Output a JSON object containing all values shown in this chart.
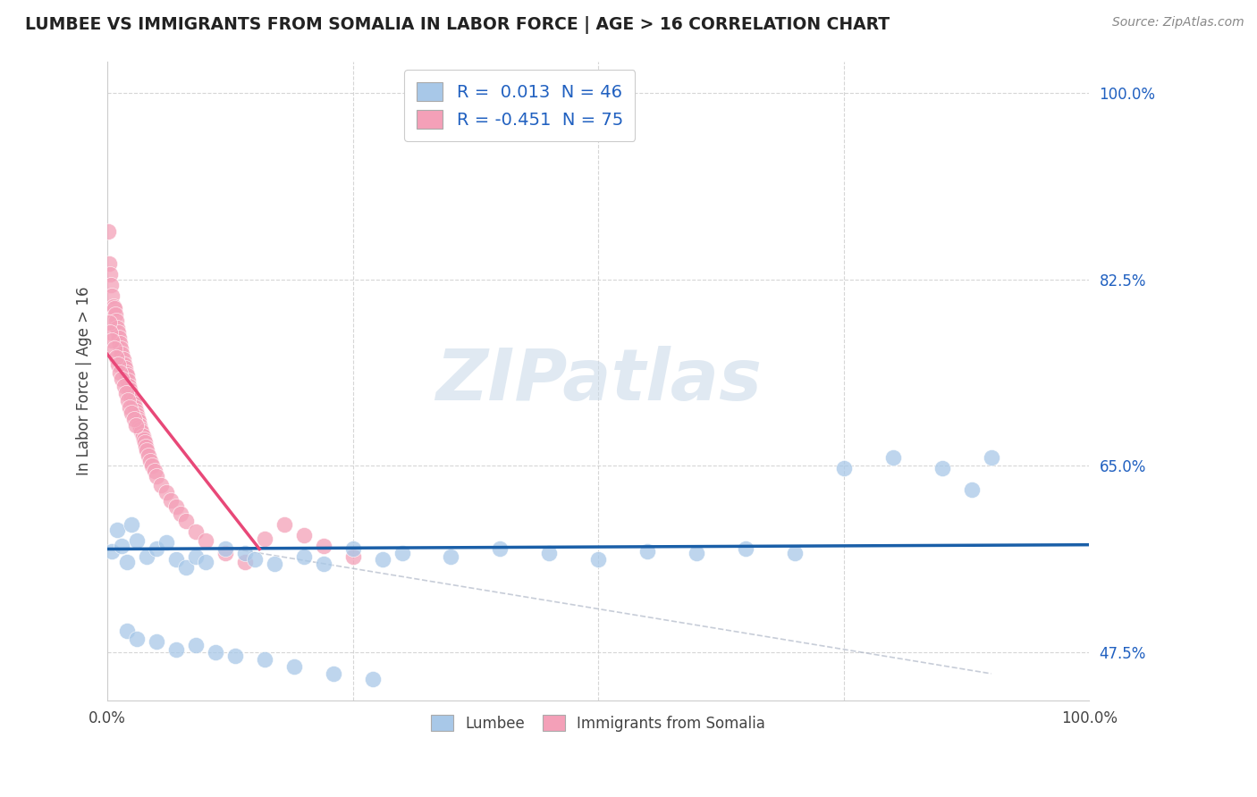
{
  "title": "LUMBEE VS IMMIGRANTS FROM SOMALIA IN LABOR FORCE | AGE > 16 CORRELATION CHART",
  "source": "Source: ZipAtlas.com",
  "ylabel": "In Labor Force | Age > 16",
  "xlim": [
    0.0,
    1.0
  ],
  "ylim": [
    0.43,
    1.03
  ],
  "ytick_vals": [
    0.475,
    0.65,
    0.825,
    1.0
  ],
  "ytick_labels": [
    "47.5%",
    "65.0%",
    "82.5%",
    "100.0%"
  ],
  "xtick_vals": [
    0.0,
    1.0
  ],
  "xtick_labels": [
    "0.0%",
    "100.0%"
  ],
  "legend_blue_label": "R =  0.013  N = 46",
  "legend_pink_label": "R = -0.451  N = 75",
  "blue_color": "#a8c8e8",
  "pink_color": "#f4a0b8",
  "blue_line_color": "#1a5fa8",
  "pink_line_color": "#e84878",
  "grid_color": "#cccccc",
  "watermark_color": "#c8d8e8",
  "lumbee_x": [
    0.005,
    0.01,
    0.015,
    0.02,
    0.025,
    0.03,
    0.04,
    0.05,
    0.06,
    0.07,
    0.08,
    0.09,
    0.1,
    0.12,
    0.14,
    0.15,
    0.17,
    0.2,
    0.22,
    0.25,
    0.28,
    0.3,
    0.35,
    0.4,
    0.45,
    0.5,
    0.55,
    0.6,
    0.65,
    0.7,
    0.75,
    0.8,
    0.85,
    0.88,
    0.9,
    0.02,
    0.03,
    0.05,
    0.07,
    0.09,
    0.11,
    0.13,
    0.16,
    0.19,
    0.23,
    0.27
  ],
  "lumbee_y": [
    0.57,
    0.59,
    0.575,
    0.56,
    0.595,
    0.58,
    0.565,
    0.572,
    0.578,
    0.562,
    0.555,
    0.565,
    0.56,
    0.572,
    0.568,
    0.562,
    0.558,
    0.565,
    0.558,
    0.572,
    0.562,
    0.568,
    0.565,
    0.572,
    0.568,
    0.562,
    0.57,
    0.568,
    0.572,
    0.568,
    0.648,
    0.658,
    0.648,
    0.628,
    0.658,
    0.495,
    0.488,
    0.485,
    0.478,
    0.482,
    0.475,
    0.472,
    0.468,
    0.462,
    0.455,
    0.45
  ],
  "somalia_x": [
    0.001,
    0.002,
    0.003,
    0.004,
    0.005,
    0.006,
    0.007,
    0.008,
    0.009,
    0.01,
    0.011,
    0.012,
    0.013,
    0.014,
    0.015,
    0.016,
    0.017,
    0.018,
    0.019,
    0.02,
    0.021,
    0.022,
    0.023,
    0.024,
    0.025,
    0.026,
    0.027,
    0.028,
    0.029,
    0.03,
    0.031,
    0.032,
    0.033,
    0.034,
    0.035,
    0.036,
    0.037,
    0.038,
    0.039,
    0.04,
    0.042,
    0.044,
    0.046,
    0.048,
    0.05,
    0.055,
    0.06,
    0.065,
    0.07,
    0.075,
    0.08,
    0.09,
    0.1,
    0.12,
    0.14,
    0.16,
    0.18,
    0.2,
    0.22,
    0.25,
    0.002,
    0.003,
    0.005,
    0.007,
    0.009,
    0.011,
    0.013,
    0.015,
    0.017,
    0.019,
    0.021,
    0.023,
    0.025,
    0.027,
    0.029
  ],
  "somalia_y": [
    0.87,
    0.84,
    0.83,
    0.82,
    0.81,
    0.8,
    0.798,
    0.792,
    0.786,
    0.78,
    0.775,
    0.77,
    0.765,
    0.76,
    0.755,
    0.75,
    0.745,
    0.742,
    0.738,
    0.735,
    0.73,
    0.725,
    0.722,
    0.718,
    0.715,
    0.712,
    0.708,
    0.705,
    0.702,
    0.698,
    0.695,
    0.692,
    0.688,
    0.685,
    0.682,
    0.678,
    0.675,
    0.672,
    0.668,
    0.665,
    0.66,
    0.655,
    0.65,
    0.645,
    0.64,
    0.632,
    0.625,
    0.618,
    0.612,
    0.605,
    0.598,
    0.588,
    0.58,
    0.568,
    0.56,
    0.582,
    0.595,
    0.585,
    0.575,
    0.565,
    0.785,
    0.775,
    0.768,
    0.76,
    0.752,
    0.745,
    0.738,
    0.732,
    0.725,
    0.718,
    0.712,
    0.705,
    0.7,
    0.694,
    0.688
  ],
  "blue_line_x": [
    0.0,
    1.0
  ],
  "blue_line_y": [
    0.572,
    0.576
  ],
  "pink_line_x": [
    0.0,
    0.155
  ],
  "pink_line_y": [
    0.755,
    0.572
  ],
  "diag_line_x": [
    0.13,
    0.9
  ],
  "diag_line_y": [
    0.572,
    0.455
  ]
}
